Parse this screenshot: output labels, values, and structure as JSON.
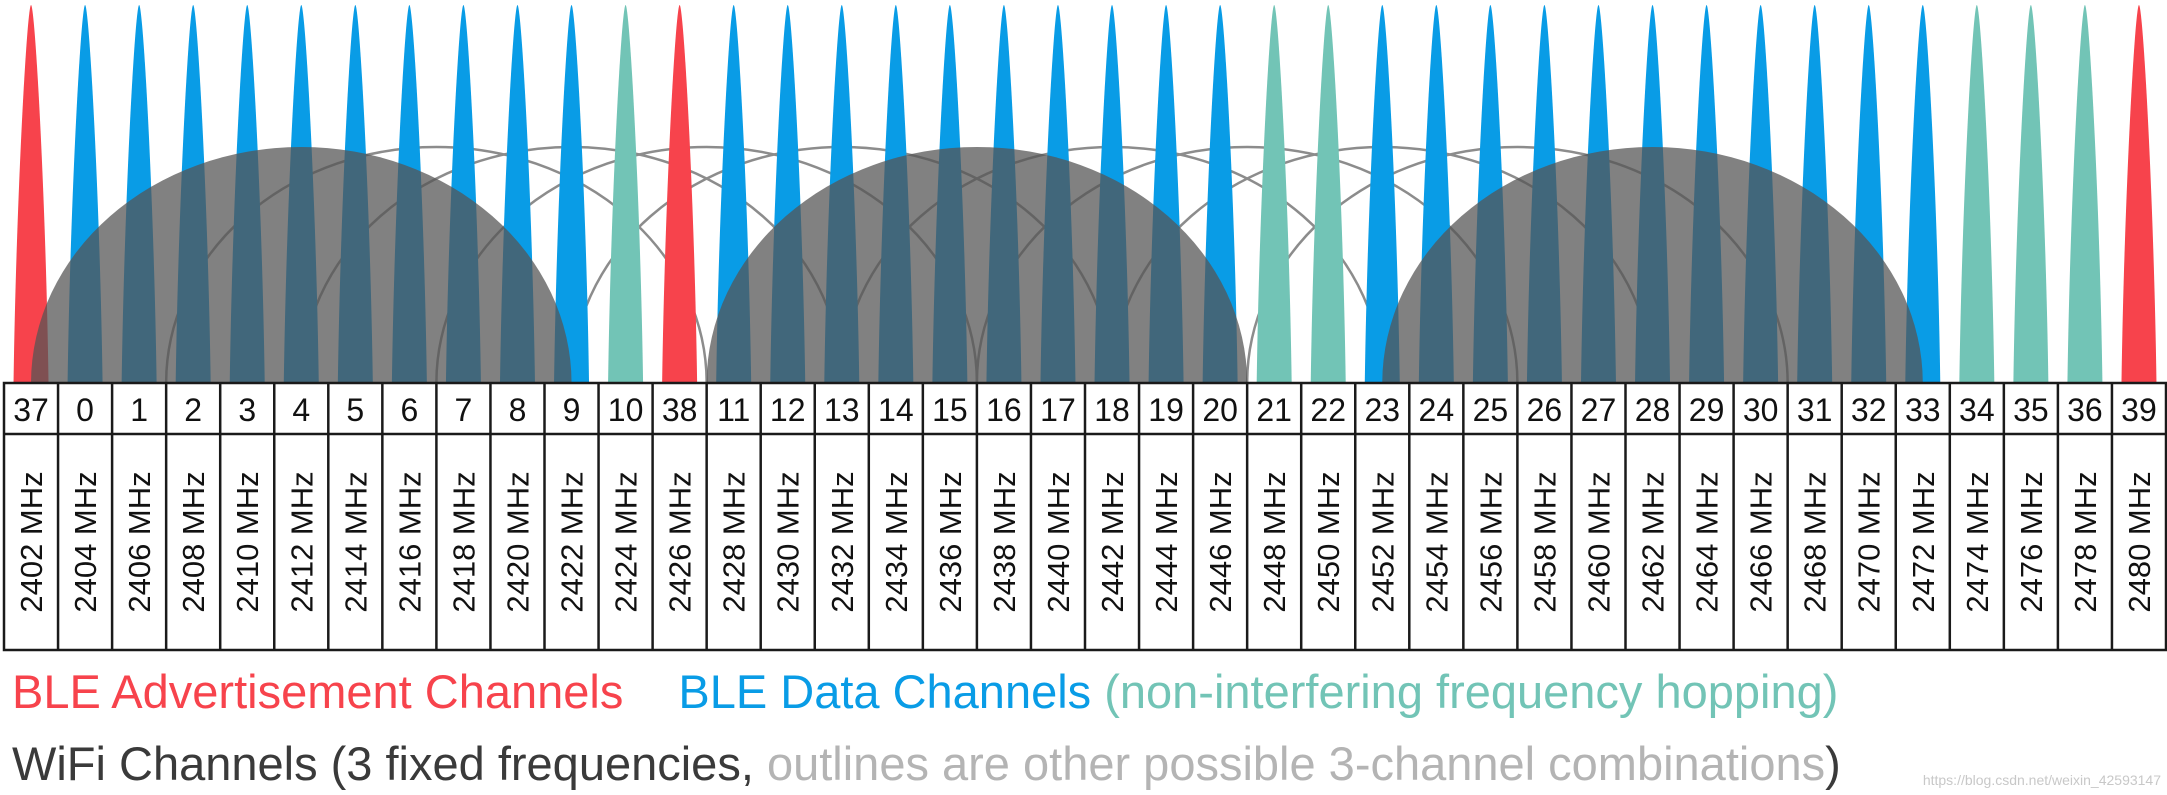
{
  "colors": {
    "advertisement": "#f7434c",
    "data": "#099ce6",
    "nonInterfering": "#72c4b6",
    "wifiFill": "#555555",
    "wifiOutline": "#8c8c8c",
    "darkText": "#3a3a3a",
    "greyText": "#b4b4b4"
  },
  "channels": [
    {
      "num": "37",
      "freq": "2402 MHz",
      "type": "advertisement"
    },
    {
      "num": "0",
      "freq": "2404 MHz",
      "type": "data"
    },
    {
      "num": "1",
      "freq": "2406 MHz",
      "type": "data"
    },
    {
      "num": "2",
      "freq": "2408 MHz",
      "type": "data"
    },
    {
      "num": "3",
      "freq": "2410 MHz",
      "type": "data"
    },
    {
      "num": "4",
      "freq": "2412 MHz",
      "type": "data"
    },
    {
      "num": "5",
      "freq": "2414 MHz",
      "type": "data"
    },
    {
      "num": "6",
      "freq": "2416 MHz",
      "type": "data"
    },
    {
      "num": "7",
      "freq": "2418 MHz",
      "type": "data"
    },
    {
      "num": "8",
      "freq": "2420 MHz",
      "type": "data"
    },
    {
      "num": "9",
      "freq": "2422 MHz",
      "type": "data"
    },
    {
      "num": "10",
      "freq": "2424 MHz",
      "type": "nonInterfering"
    },
    {
      "num": "38",
      "freq": "2426 MHz",
      "type": "advertisement"
    },
    {
      "num": "11",
      "freq": "2428 MHz",
      "type": "data"
    },
    {
      "num": "12",
      "freq": "2430 MHz",
      "type": "data"
    },
    {
      "num": "13",
      "freq": "2432 MHz",
      "type": "data"
    },
    {
      "num": "14",
      "freq": "2434 MHz",
      "type": "data"
    },
    {
      "num": "15",
      "freq": "2436 MHz",
      "type": "data"
    },
    {
      "num": "16",
      "freq": "2438 MHz",
      "type": "data"
    },
    {
      "num": "17",
      "freq": "2440 MHz",
      "type": "data"
    },
    {
      "num": "18",
      "freq": "2442 MHz",
      "type": "data"
    },
    {
      "num": "19",
      "freq": "2444 MHz",
      "type": "data"
    },
    {
      "num": "20",
      "freq": "2446 MHz",
      "type": "data"
    },
    {
      "num": "21",
      "freq": "2448 MHz",
      "type": "nonInterfering"
    },
    {
      "num": "22",
      "freq": "2450 MHz",
      "type": "nonInterfering"
    },
    {
      "num": "23",
      "freq": "2452 MHz",
      "type": "data"
    },
    {
      "num": "24",
      "freq": "2454 MHz",
      "type": "data"
    },
    {
      "num": "25",
      "freq": "2456 MHz",
      "type": "data"
    },
    {
      "num": "26",
      "freq": "2458 MHz",
      "type": "data"
    },
    {
      "num": "27",
      "freq": "2460 MHz",
      "type": "data"
    },
    {
      "num": "28",
      "freq": "2462 MHz",
      "type": "data"
    },
    {
      "num": "29",
      "freq": "2464 MHz",
      "type": "data"
    },
    {
      "num": "30",
      "freq": "2466 MHz",
      "type": "data"
    },
    {
      "num": "31",
      "freq": "2468 MHz",
      "type": "data"
    },
    {
      "num": "32",
      "freq": "2470 MHz",
      "type": "data"
    },
    {
      "num": "33",
      "freq": "2472 MHz",
      "type": "data"
    },
    {
      "num": "34",
      "freq": "2474 MHz",
      "type": "nonInterfering"
    },
    {
      "num": "35",
      "freq": "2476 MHz",
      "type": "nonInterfering"
    },
    {
      "num": "36",
      "freq": "2478 MHz",
      "type": "nonInterfering"
    },
    {
      "num": "39",
      "freq": "2480 MHz",
      "type": "advertisement"
    }
  ],
  "wifi": {
    "filledCenters": [
      2412,
      2437,
      2462
    ],
    "outlineCenters": [
      2417,
      2422,
      2427,
      2432,
      2442,
      2447,
      2452,
      2457
    ],
    "bandwidthMHz": 20
  },
  "legend": {
    "advertisement": "BLE Advertisement Channels",
    "data": "BLE Data Channels",
    "nonInterfering": "(non-interfering frequency hopping)",
    "wifiMain": "WiFi Channels (3 fixed frequencies,",
    "wifiOutlines": "outlines are other possible 3-channel combinations",
    "wifiClose": ")"
  },
  "watermark": "https://blog.csdn.net/weixin_42593147"
}
